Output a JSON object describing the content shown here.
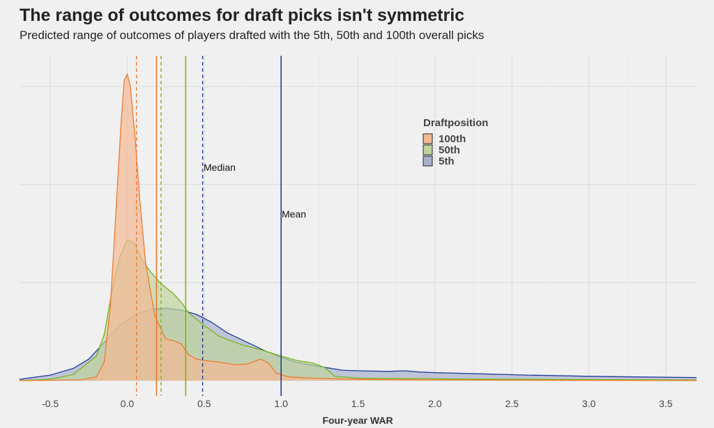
{
  "chart_data": {
    "type": "area",
    "title": "The range of outcomes for draft picks isn't symmetric",
    "subtitle": "Predicted range of outcomes of players drafted with the 5th, 50th and 100th overall picks",
    "xlabel": "Four-year WAR",
    "ylabel": "",
    "xlim": [
      -0.7,
      3.7
    ],
    "ylim": [
      0,
      5.3
    ],
    "x_ticks": [
      "-0.5",
      "0.0",
      "0.5",
      "1.0",
      "1.5",
      "2.0",
      "2.5",
      "3.0",
      "3.5"
    ],
    "grid": true,
    "legend": {
      "title": "Draftposition",
      "position": "top-right"
    },
    "annotations": [
      "Median",
      "Mean"
    ],
    "series": [
      {
        "name": "100th",
        "fill": "#f4b894",
        "stroke": "#ee7a2c",
        "mean": 0.19,
        "median": 0.06,
        "points": [
          [
            -0.7,
            0
          ],
          [
            -0.3,
            0.01
          ],
          [
            -0.2,
            0.06
          ],
          [
            -0.15,
            0.3
          ],
          [
            -0.11,
            1.2
          ],
          [
            -0.07,
            2.9
          ],
          [
            -0.04,
            4.2
          ],
          [
            -0.02,
            4.9
          ],
          [
            0.0,
            5.0
          ],
          [
            0.02,
            4.8
          ],
          [
            0.05,
            4.0
          ],
          [
            0.08,
            3.0
          ],
          [
            0.12,
            1.9
          ],
          [
            0.18,
            1.05
          ],
          [
            0.25,
            0.68
          ],
          [
            0.3,
            0.65
          ],
          [
            0.35,
            0.6
          ],
          [
            0.4,
            0.42
          ],
          [
            0.45,
            0.35
          ],
          [
            0.5,
            0.33
          ],
          [
            0.6,
            0.3
          ],
          [
            0.7,
            0.26
          ],
          [
            0.78,
            0.27
          ],
          [
            0.83,
            0.32
          ],
          [
            0.87,
            0.35
          ],
          [
            0.92,
            0.28
          ],
          [
            0.97,
            0.12
          ],
          [
            1.05,
            0.06
          ],
          [
            1.2,
            0.04
          ],
          [
            1.5,
            0.02
          ],
          [
            2.0,
            0.01
          ],
          [
            3.7,
            0
          ]
        ]
      },
      {
        "name": "50th",
        "fill": "#bfd49d",
        "stroke": "#7ab317",
        "mean": 0.38,
        "median": 0.22,
        "points": [
          [
            -0.7,
            0
          ],
          [
            -0.5,
            0.02
          ],
          [
            -0.35,
            0.1
          ],
          [
            -0.2,
            0.4
          ],
          [
            -0.15,
            0.75
          ],
          [
            -0.1,
            1.45
          ],
          [
            -0.05,
            2.0
          ],
          [
            0.0,
            2.3
          ],
          [
            0.05,
            2.23
          ],
          [
            0.1,
            1.95
          ],
          [
            0.15,
            1.78
          ],
          [
            0.22,
            1.58
          ],
          [
            0.3,
            1.42
          ],
          [
            0.36,
            1.25
          ],
          [
            0.4,
            1.1
          ],
          [
            0.5,
            0.9
          ],
          [
            0.6,
            0.72
          ],
          [
            0.75,
            0.58
          ],
          [
            0.9,
            0.48
          ],
          [
            1.0,
            0.4
          ],
          [
            1.1,
            0.33
          ],
          [
            1.2,
            0.29
          ],
          [
            1.28,
            0.22
          ],
          [
            1.35,
            0.07
          ],
          [
            1.5,
            0.04
          ],
          [
            2.0,
            0.03
          ],
          [
            2.5,
            0.02
          ],
          [
            3.7,
            0.01
          ]
        ]
      },
      {
        "name": "5th",
        "fill": "#a8b1cc",
        "stroke": "#1e3c9a",
        "mean": 1.0,
        "median": 0.49,
        "points": [
          [
            -0.7,
            0.02
          ],
          [
            -0.5,
            0.09
          ],
          [
            -0.35,
            0.2
          ],
          [
            -0.25,
            0.35
          ],
          [
            -0.15,
            0.62
          ],
          [
            -0.05,
            0.9
          ],
          [
            0.05,
            1.07
          ],
          [
            0.15,
            1.16
          ],
          [
            0.25,
            1.18
          ],
          [
            0.35,
            1.15
          ],
          [
            0.45,
            1.08
          ],
          [
            0.55,
            0.95
          ],
          [
            0.65,
            0.78
          ],
          [
            0.8,
            0.6
          ],
          [
            0.9,
            0.48
          ],
          [
            1.0,
            0.38
          ],
          [
            1.1,
            0.3
          ],
          [
            1.25,
            0.23
          ],
          [
            1.4,
            0.17
          ],
          [
            1.5,
            0.16
          ],
          [
            1.7,
            0.15
          ],
          [
            1.8,
            0.16
          ],
          [
            1.9,
            0.14
          ],
          [
            2.0,
            0.13
          ],
          [
            2.3,
            0.11
          ],
          [
            2.6,
            0.09
          ],
          [
            3.0,
            0.07
          ],
          [
            3.3,
            0.06
          ],
          [
            3.7,
            0.05
          ]
        ]
      }
    ]
  }
}
